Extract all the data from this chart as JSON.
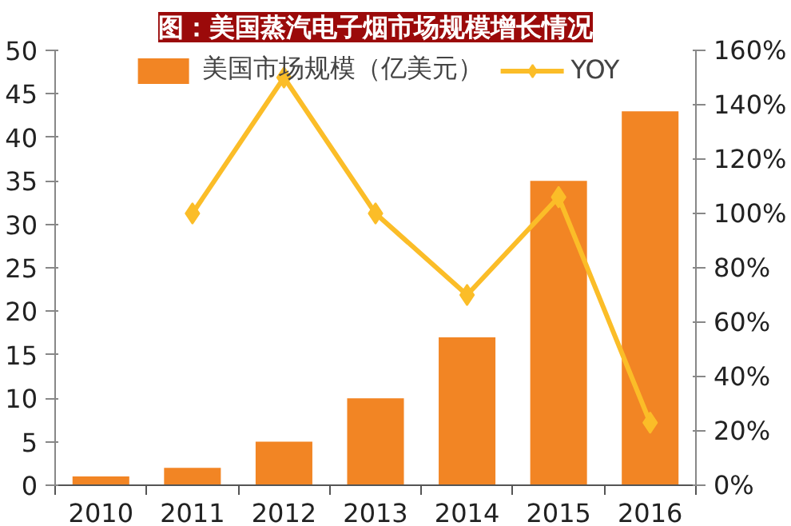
{
  "chart_data": {
    "type": "bar",
    "title": "图：美国蒸汽电子烟市场规模增长情况",
    "categories": [
      "2010",
      "2011",
      "2012",
      "2013",
      "2014",
      "2015",
      "2016"
    ],
    "series": [
      {
        "name": "美国市场规模（亿美元）",
        "color": "#f28524",
        "values": [
          1,
          2,
          5,
          10,
          17,
          35,
          43
        ]
      },
      {
        "name": "YOY",
        "type": "line",
        "axis": "y2",
        "color": "#fbbd28",
        "values": [
          null,
          100,
          150,
          100,
          70,
          106,
          23
        ]
      }
    ],
    "ylim": [
      0,
      50
    ],
    "yticks": [
      0,
      5,
      10,
      15,
      20,
      25,
      30,
      35,
      40,
      45,
      50
    ],
    "y2lim": [
      0,
      160
    ],
    "y2ticks": [
      {
        "value": 0,
        "label": "0%"
      },
      {
        "value": 20,
        "label": "20%"
      },
      {
        "value": 40,
        "label": "40%"
      },
      {
        "value": 60,
        "label": "60%"
      },
      {
        "value": 80,
        "label": "80%"
      },
      {
        "value": 100,
        "label": "100%"
      },
      {
        "value": 120,
        "label": "120%"
      },
      {
        "value": 140,
        "label": "140%"
      },
      {
        "value": 160,
        "label": "160%"
      }
    ],
    "grid": false,
    "legend": "top",
    "marker": "diamond",
    "line_style": "solid"
  }
}
